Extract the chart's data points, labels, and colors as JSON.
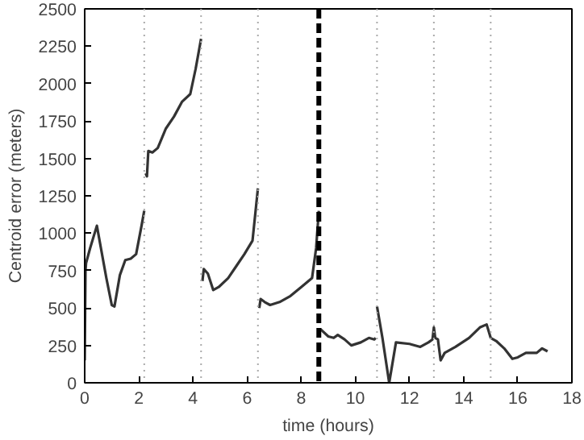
{
  "chart_data": {
    "type": "line",
    "xlabel": "time (hours)",
    "ylabel": "Centroid error (meters)",
    "xlim": [
      0,
      18
    ],
    "ylim": [
      0,
      2500
    ],
    "xticks": [
      0,
      2,
      4,
      6,
      8,
      10,
      12,
      14,
      16,
      18
    ],
    "yticks": [
      0,
      250,
      500,
      750,
      1000,
      1250,
      1500,
      1750,
      2000,
      2250,
      2500
    ],
    "marker": "none",
    "line_style": "solid",
    "series": [
      {
        "color": "#333333",
        "x": [
          0,
          0.03,
          0.05,
          0.2,
          0.45,
          0.6,
          0.8,
          1.0,
          1.1,
          1.3,
          1.5,
          1.7,
          1.9,
          2.1,
          2.2,
          2.21,
          2.25,
          2.3,
          2.35,
          2.5,
          2.7,
          3.0,
          3.3,
          3.6,
          3.9,
          4.1,
          4.3,
          4.31,
          4.35,
          4.4,
          4.55,
          4.75,
          4.95,
          5.3,
          5.6,
          5.9,
          6.2,
          6.4,
          6.41,
          6.45,
          6.5,
          6.65,
          6.85,
          7.2,
          7.6,
          8.0,
          8.4,
          8.55,
          8.65,
          8.66,
          8.7,
          9.0,
          9.2,
          9.35,
          9.6,
          9.85,
          10.2,
          10.5,
          10.7,
          10.75,
          10.76,
          10.8,
          11.0,
          11.25,
          11.5,
          12.0,
          12.4,
          12.7,
          12.85,
          12.9,
          12.95,
          13.05,
          13.15,
          13.3,
          13.7,
          14.2,
          14.6,
          14.85,
          15.0,
          15.2,
          15.5,
          15.8,
          16.0,
          16.3,
          16.7,
          16.9,
          17.1
        ],
        "values": [
          150,
          750,
          800,
          900,
          1050,
          900,
          700,
          520,
          510,
          720,
          820,
          830,
          860,
          1050,
          1150,
          null,
          1400,
          1380,
          1550,
          1540,
          1570,
          1700,
          1780,
          1880,
          1930,
          2100,
          2300,
          null,
          680,
          760,
          730,
          620,
          640,
          700,
          780,
          860,
          950,
          1300,
          null,
          500,
          560,
          540,
          520,
          540,
          580,
          640,
          700,
          900,
          1150,
          null,
          360,
          310,
          300,
          320,
          290,
          250,
          270,
          300,
          290,
          300,
          null,
          510,
          300,
          0,
          270,
          260,
          240,
          270,
          290,
          370,
          300,
          290,
          150,
          200,
          240,
          300,
          370,
          390,
          300,
          280,
          230,
          160,
          170,
          200,
          200,
          230,
          210
        ]
      }
    ],
    "ref_lines": [
      {
        "axis": "x",
        "value": 2.2,
        "color": "#aaaaaa",
        "line_style": "dotted"
      },
      {
        "axis": "x",
        "value": 4.3,
        "color": "#aaaaaa",
        "line_style": "dotted"
      },
      {
        "axis": "x",
        "value": 6.4,
        "color": "#aaaaaa",
        "line_style": "dotted"
      },
      {
        "axis": "x",
        "value": 8.65,
        "color": "#000000",
        "line_style": "dashed"
      },
      {
        "axis": "x",
        "value": 10.8,
        "color": "#aaaaaa",
        "line_style": "dotted"
      },
      {
        "axis": "x",
        "value": 12.9,
        "color": "#aaaaaa",
        "line_style": "dotted"
      },
      {
        "axis": "x",
        "value": 15.0,
        "color": "#aaaaaa",
        "line_style": "dotted"
      }
    ]
  }
}
